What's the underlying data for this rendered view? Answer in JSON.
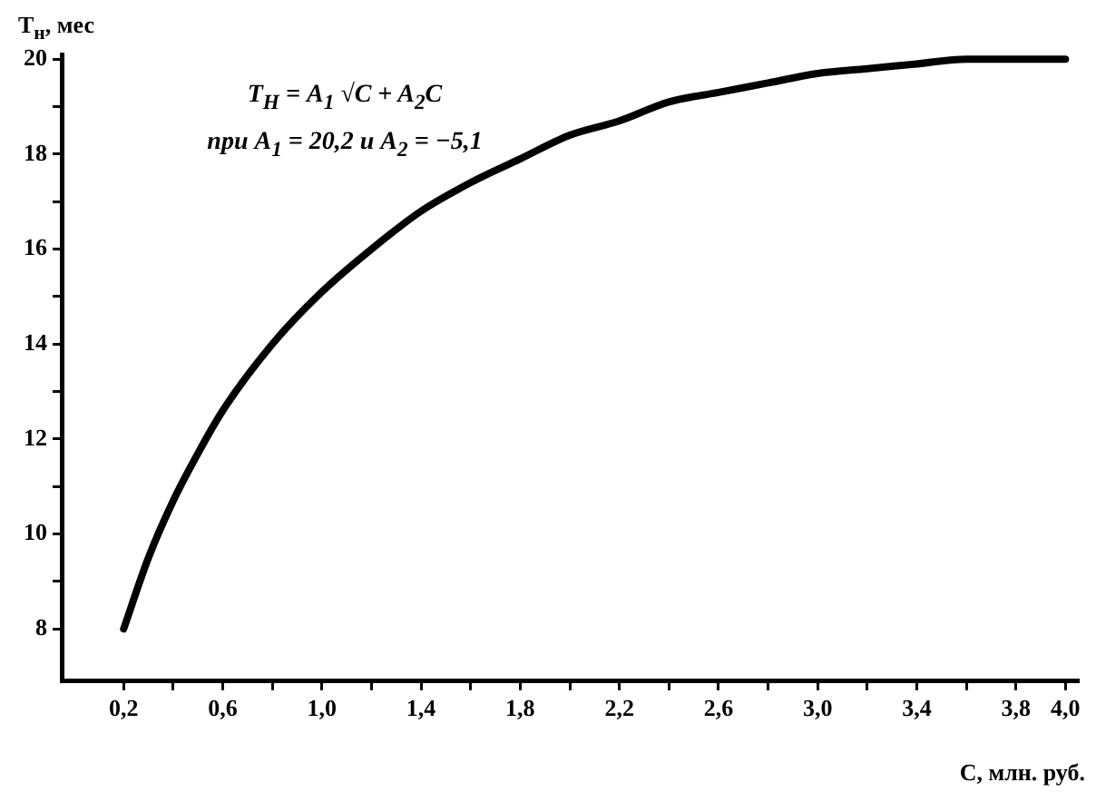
{
  "chart_data": {
    "type": "line",
    "xlabel": "C, млн. руб.",
    "ylabel": "T$_{н}$, мес",
    "annotations": [
      "T$_{Н}$ = A$_{1}$ √C + A$_{2}$C",
      "при A$_{1}$ = 20,2 и A$_{2}$ = −5,1"
    ],
    "x": [
      0.2,
      0.3,
      0.4,
      0.5,
      0.6,
      0.8,
      1.0,
      1.2,
      1.4,
      1.6,
      1.8,
      2.0,
      2.2,
      2.4,
      2.6,
      2.8,
      3.0,
      3.2,
      3.4,
      3.6,
      3.8,
      4.0
    ],
    "series": [
      {
        "color": "#000000",
        "values": [
          8.0,
          9.5,
          10.7,
          11.7,
          12.6,
          14.0,
          15.1,
          16.0,
          16.8,
          17.4,
          17.9,
          18.4,
          18.7,
          19.1,
          19.3,
          19.5,
          19.7,
          19.8,
          19.9,
          20.0,
          20.0,
          20.0
        ]
      }
    ],
    "xlim": [
      -0.05,
      4.05
    ],
    "ylim": [
      6.9,
      20.1
    ],
    "xticks": [
      {
        "value": 0.2,
        "label": "0,2"
      },
      {
        "value": 0.4,
        "label": null
      },
      {
        "value": 0.6,
        "label": "0,6"
      },
      {
        "value": 0.8,
        "label": null
      },
      {
        "value": 1.0,
        "label": "1,0"
      },
      {
        "value": 1.2,
        "label": null
      },
      {
        "value": 1.4,
        "label": "1,4"
      },
      {
        "value": 1.6,
        "label": null
      },
      {
        "value": 1.8,
        "label": "1,8"
      },
      {
        "value": 2.0,
        "label": null
      },
      {
        "value": 2.2,
        "label": "2,2"
      },
      {
        "value": 2.4,
        "label": null
      },
      {
        "value": 2.6,
        "label": "2,6"
      },
      {
        "value": 2.8,
        "label": null
      },
      {
        "value": 3.0,
        "label": "3,0"
      },
      {
        "value": 3.2,
        "label": null
      },
      {
        "value": 3.4,
        "label": "3,4"
      },
      {
        "value": 3.6,
        "label": null
      },
      {
        "value": 3.8,
        "label": "3,8"
      },
      {
        "value": 4.0,
        "label": "4,0"
      }
    ],
    "yticks": [
      8,
      {
        "value": 9,
        "label": null
      },
      10,
      {
        "value": 11,
        "label": null
      },
      12,
      {
        "value": 13,
        "label": null
      },
      14,
      {
        "value": 15,
        "label": null
      },
      16,
      {
        "value": 17,
        "label": null
      },
      18,
      {
        "value": 19,
        "label": null
      },
      20
    ],
    "grid": false,
    "legend": false,
    "marker": "none",
    "line_style": "solid"
  }
}
